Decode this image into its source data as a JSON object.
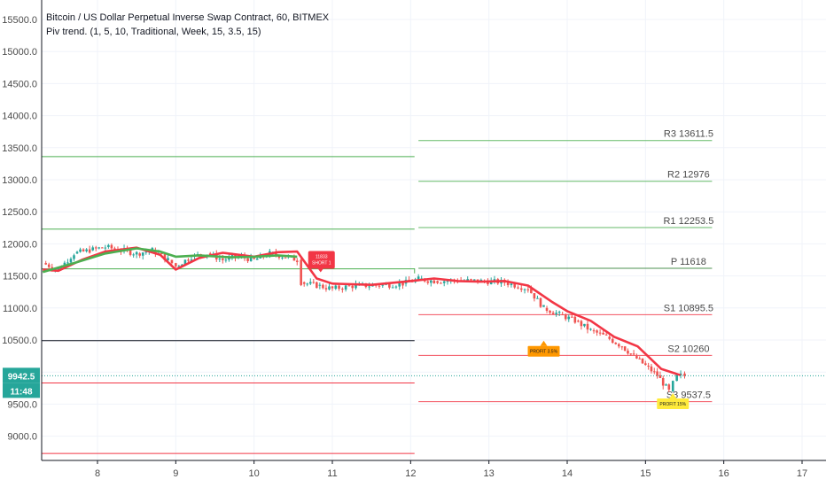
{
  "chart_data": {
    "type": "candlestick",
    "title": "Bitcoin / US Dollar Perpetual Inverse Swap Contract, 60, BITMEX",
    "indicator_label": "Piv trend. (1, 5, 10, Traditional, Week, 15, 3.5, 15)",
    "y_ticks": [
      "15500.0",
      "15000.0",
      "14500.0",
      "14000.0",
      "13500.0",
      "13000.0",
      "12500.0",
      "12000.0",
      "11500.0",
      "11000.0",
      "10500.0",
      "10000.0",
      "9500.0",
      "9000.0"
    ],
    "x_ticks": [
      "8",
      "9",
      "10",
      "11",
      "12",
      "13",
      "14",
      "15",
      "16",
      "17"
    ],
    "ylim": [
      8700,
      15650
    ],
    "xlim": [
      7.25,
      17.3
    ],
    "grid": true,
    "current_price": "9942.5",
    "countdown": "11:48",
    "current_week_pivots": [
      {
        "label": "R3",
        "value": "13611.5",
        "y": 13611.5
      },
      {
        "label": "R2",
        "value": "12976",
        "y": 12976
      },
      {
        "label": "R1",
        "value": "12253.5",
        "y": 12253.5
      },
      {
        "label": "P",
        "value": "11618",
        "y": 11618
      },
      {
        "label": "S1",
        "value": "10895.5",
        "y": 10895.5
      },
      {
        "label": "S2",
        "value": "10260",
        "y": 10260
      },
      {
        "label": "S3",
        "value": "9537.5",
        "y": 9537.5
      }
    ],
    "previous_week_levels": [
      13360,
      12230,
      11610,
      10490,
      9830,
      8730
    ],
    "price_path": [
      [
        7.3,
        11700
      ],
      [
        7.5,
        11600
      ],
      [
        7.7,
        11850
      ],
      [
        7.9,
        11900
      ],
      [
        8.1,
        11950
      ],
      [
        8.3,
        11900
      ],
      [
        8.5,
        11850
      ],
      [
        8.7,
        11900
      ],
      [
        8.9,
        11750
      ],
      [
        9.0,
        11650
      ],
      [
        9.2,
        11800
      ],
      [
        9.4,
        11850
      ],
      [
        9.6,
        11750
      ],
      [
        9.8,
        11800
      ],
      [
        10.0,
        11750
      ],
      [
        10.2,
        11850
      ],
      [
        10.4,
        11800
      ],
      [
        10.55,
        11750
      ],
      [
        10.6,
        11400
      ],
      [
        10.8,
        11350
      ],
      [
        11.0,
        11300
      ],
      [
        11.3,
        11350
      ],
      [
        11.6,
        11350
      ],
      [
        11.9,
        11380
      ],
      [
        12.1,
        11450
      ],
      [
        12.3,
        11420
      ],
      [
        12.6,
        11430
      ],
      [
        12.9,
        11420
      ],
      [
        13.2,
        11400
      ],
      [
        13.5,
        11300
      ],
      [
        13.7,
        11000
      ],
      [
        13.9,
        10900
      ],
      [
        14.1,
        10800
      ],
      [
        14.3,
        10650
      ],
      [
        14.5,
        10550
      ],
      [
        14.7,
        10400
      ],
      [
        14.85,
        10250
      ],
      [
        15.0,
        10100
      ],
      [
        15.15,
        9950
      ],
      [
        15.3,
        9700
      ],
      [
        15.4,
        9950
      ],
      [
        15.5,
        9942.5
      ]
    ],
    "trend_line": {
      "green": [
        [
          7.3,
          11560
        ],
        [
          7.7,
          11700
        ],
        [
          8.1,
          11850
        ],
        [
          8.5,
          11930
        ],
        [
          8.8,
          11880
        ],
        [
          9.0,
          11800
        ],
        [
          9.3,
          11820
        ],
        [
          9.7,
          11790
        ],
        [
          10.0,
          11800
        ],
        [
          10.3,
          11820
        ],
        [
          10.55,
          11800
        ]
      ],
      "red": [
        [
          7.3,
          11600
        ],
        [
          7.5,
          11580
        ],
        [
          7.8,
          11750
        ],
        [
          8.1,
          11880
        ],
        [
          8.5,
          11940
        ],
        [
          8.8,
          11830
        ],
        [
          9.0,
          11600
        ],
        [
          9.3,
          11780
        ],
        [
          9.6,
          11860
        ],
        [
          10.0,
          11800
        ],
        [
          10.3,
          11870
        ],
        [
          10.55,
          11880
        ],
        [
          10.8,
          11460
        ],
        [
          11.0,
          11380
        ],
        [
          11.5,
          11360
        ],
        [
          12.0,
          11420
        ],
        [
          12.3,
          11460
        ],
        [
          12.6,
          11420
        ],
        [
          12.9,
          11410
        ],
        [
          13.2,
          11420
        ],
        [
          13.5,
          11350
        ],
        [
          13.8,
          11100
        ],
        [
          14.0,
          10950
        ],
        [
          14.3,
          10800
        ],
        [
          14.6,
          10550
        ],
        [
          14.9,
          10400
        ],
        [
          15.2,
          10050
        ],
        [
          15.45,
          9950
        ]
      ]
    },
    "signals": [
      {
        "type": "short",
        "text_line1": "11833",
        "text_line2": "SHORT 1",
        "x": 10.85,
        "y": 11750
      },
      {
        "type": "profit",
        "text": "PROFIT 3.5%",
        "x": 13.7,
        "y": 10380
      },
      {
        "type": "profit",
        "text": "PROFIT 15%",
        "x": 15.35,
        "y": 9560
      }
    ],
    "colors": {
      "bull": "#26a69a",
      "bear": "#ef5350",
      "trend_green": "#4caf50",
      "trend_red": "#f23645",
      "resistance": "#4caf50",
      "support": "#f23645",
      "pivot": "#4caf50",
      "price_tag": "#26a69a",
      "short_label": "#f23645",
      "profit_label": "#ff9800",
      "profit_label_2": "#ffeb3b"
    }
  }
}
